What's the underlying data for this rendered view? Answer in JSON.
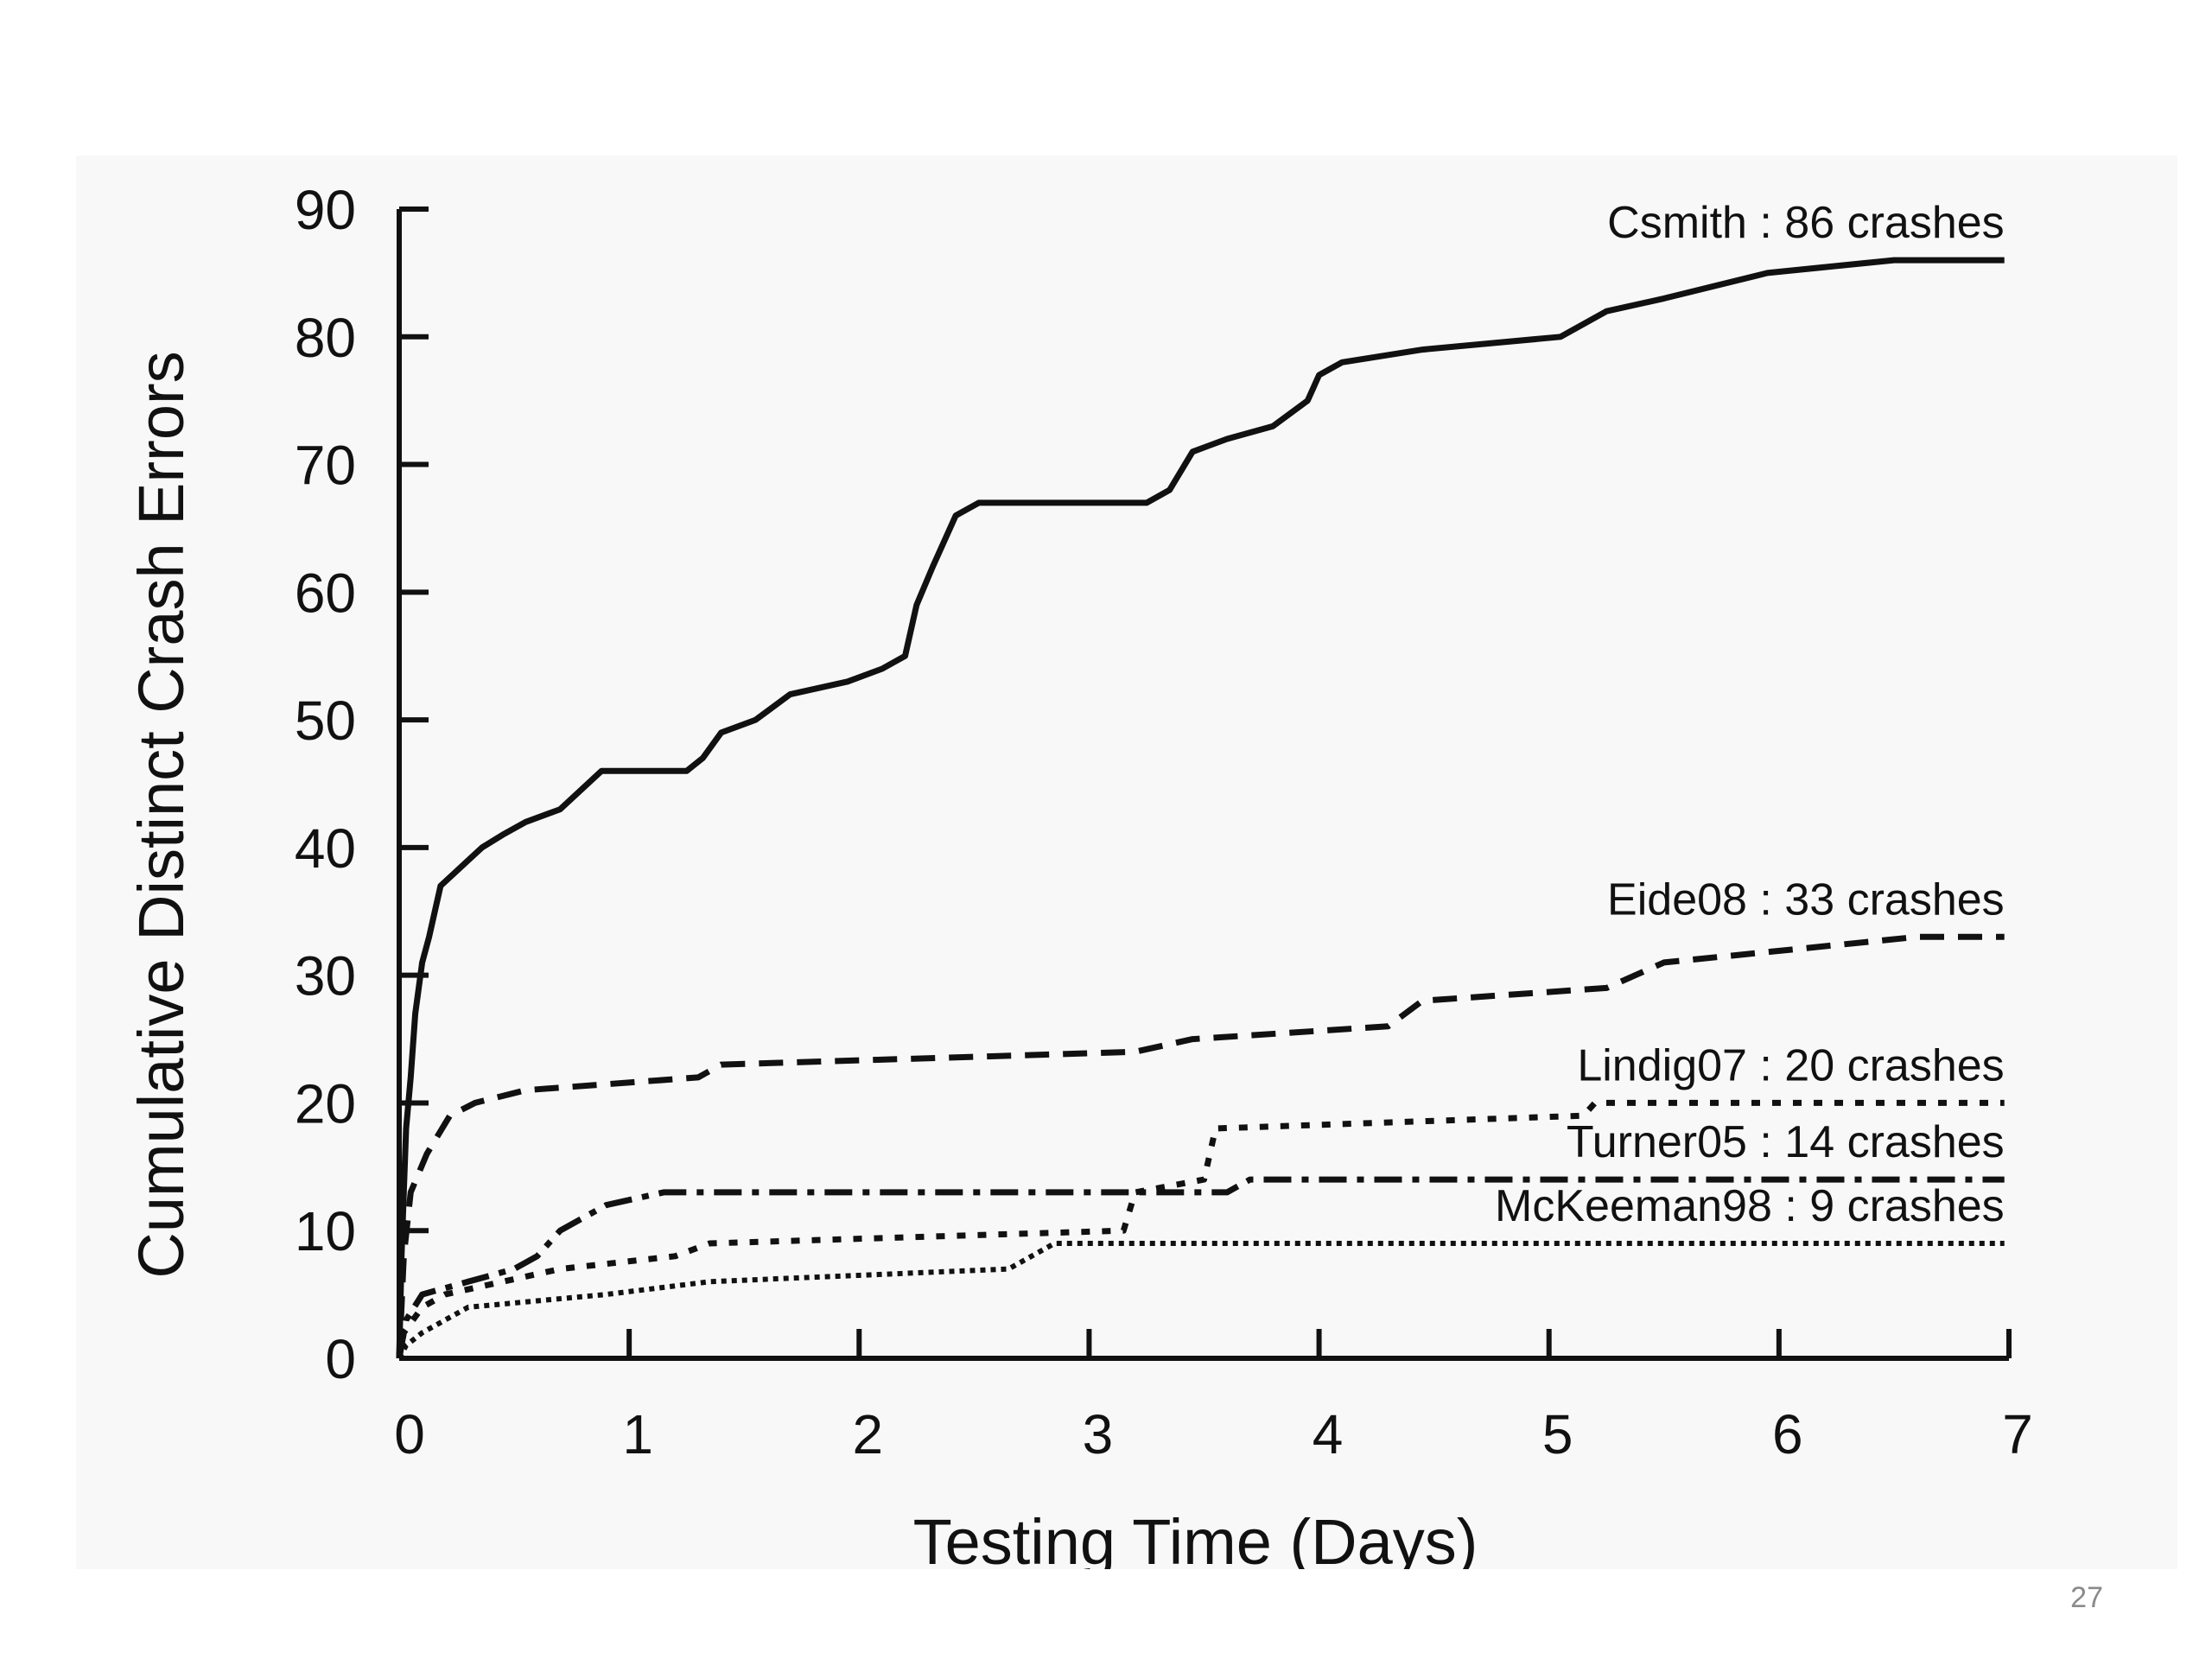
{
  "slide": {
    "page_number": "27"
  },
  "chart_data": {
    "type": "line",
    "title": "",
    "xlabel": "Testing Time (Days)",
    "ylabel": "Cumulative Distinct Crash Errors",
    "xlim": [
      0,
      7
    ],
    "ylim": [
      0,
      90
    ],
    "xticks": [
      0,
      1,
      2,
      3,
      4,
      5,
      6,
      7
    ],
    "yticks": [
      0,
      10,
      20,
      30,
      40,
      50,
      60,
      70,
      80,
      90
    ],
    "grid": false,
    "legend": "inline labels at right end of each line",
    "line_color": "#111111",
    "series": [
      {
        "name": "Csmith",
        "label": "Csmith : 86 crashes",
        "style": "solid",
        "points": [
          [
            0,
            0
          ],
          [
            0.01,
            8
          ],
          [
            0.02,
            13
          ],
          [
            0.03,
            18
          ],
          [
            0.05,
            22
          ],
          [
            0.07,
            27
          ],
          [
            0.1,
            31
          ],
          [
            0.13,
            33
          ],
          [
            0.18,
            37
          ],
          [
            0.24,
            38
          ],
          [
            0.3,
            39
          ],
          [
            0.36,
            40
          ],
          [
            0.45,
            41
          ],
          [
            0.55,
            42
          ],
          [
            0.7,
            43
          ],
          [
            0.88,
            46
          ],
          [
            1.25,
            46
          ],
          [
            1.32,
            47
          ],
          [
            1.4,
            49
          ],
          [
            1.55,
            50
          ],
          [
            1.7,
            52
          ],
          [
            1.95,
            53
          ],
          [
            2.1,
            54
          ],
          [
            2.2,
            55
          ],
          [
            2.25,
            59
          ],
          [
            2.32,
            62
          ],
          [
            2.42,
            66
          ],
          [
            2.52,
            67
          ],
          [
            3.25,
            67
          ],
          [
            3.35,
            68
          ],
          [
            3.45,
            71
          ],
          [
            3.6,
            72
          ],
          [
            3.8,
            73
          ],
          [
            3.95,
            75
          ],
          [
            4.0,
            77
          ],
          [
            4.1,
            78
          ],
          [
            4.45,
            79
          ],
          [
            5.05,
            80
          ],
          [
            5.25,
            82
          ],
          [
            5.5,
            83
          ],
          [
            5.95,
            85
          ],
          [
            6.5,
            86
          ],
          [
            6.98,
            86
          ]
        ]
      },
      {
        "name": "Eide08",
        "label": "Eide08 : 33 crashes",
        "style": "dashed",
        "points": [
          [
            0,
            0
          ],
          [
            0.02,
            8
          ],
          [
            0.05,
            13
          ],
          [
            0.12,
            16
          ],
          [
            0.22,
            19
          ],
          [
            0.33,
            20
          ],
          [
            0.55,
            21
          ],
          [
            1.3,
            22
          ],
          [
            1.4,
            23
          ],
          [
            3.2,
            24
          ],
          [
            3.45,
            25
          ],
          [
            4.3,
            26
          ],
          [
            4.45,
            28
          ],
          [
            5.25,
            29
          ],
          [
            5.5,
            31
          ],
          [
            6.6,
            33
          ],
          [
            6.98,
            33
          ]
        ]
      },
      {
        "name": "Lindig07",
        "label": "Lindig07 : 20 crashes",
        "style": "dotted",
        "points": [
          [
            0,
            0
          ],
          [
            0.02,
            2
          ],
          [
            0.1,
            4
          ],
          [
            0.2,
            5
          ],
          [
            0.45,
            6
          ],
          [
            0.7,
            7
          ],
          [
            1.2,
            8
          ],
          [
            1.35,
            9
          ],
          [
            3.15,
            10
          ],
          [
            3.2,
            13
          ],
          [
            3.5,
            14
          ],
          [
            3.55,
            18
          ],
          [
            5.15,
            19
          ],
          [
            5.2,
            20
          ],
          [
            6.98,
            20
          ]
        ]
      },
      {
        "name": "Turner05",
        "label": "Turner05 : 14 crashes",
        "style": "dashdot",
        "points": [
          [
            0,
            0
          ],
          [
            0.03,
            3
          ],
          [
            0.1,
            5
          ],
          [
            0.3,
            6
          ],
          [
            0.5,
            7
          ],
          [
            0.6,
            8
          ],
          [
            0.7,
            10
          ],
          [
            0.8,
            11
          ],
          [
            0.9,
            12
          ],
          [
            1.15,
            13
          ],
          [
            3.6,
            13
          ],
          [
            3.7,
            14
          ],
          [
            6.98,
            14
          ]
        ]
      },
      {
        "name": "McKeeman98",
        "label": "McKeeman98 : 9 crashes",
        "style": "finedotted",
        "points": [
          [
            0,
            0
          ],
          [
            0.03,
            1
          ],
          [
            0.1,
            2
          ],
          [
            0.3,
            4
          ],
          [
            0.9,
            5
          ],
          [
            1.35,
            6
          ],
          [
            2.65,
            7
          ],
          [
            2.75,
            8
          ],
          [
            2.85,
            9
          ],
          [
            6.98,
            9
          ]
        ]
      }
    ]
  }
}
